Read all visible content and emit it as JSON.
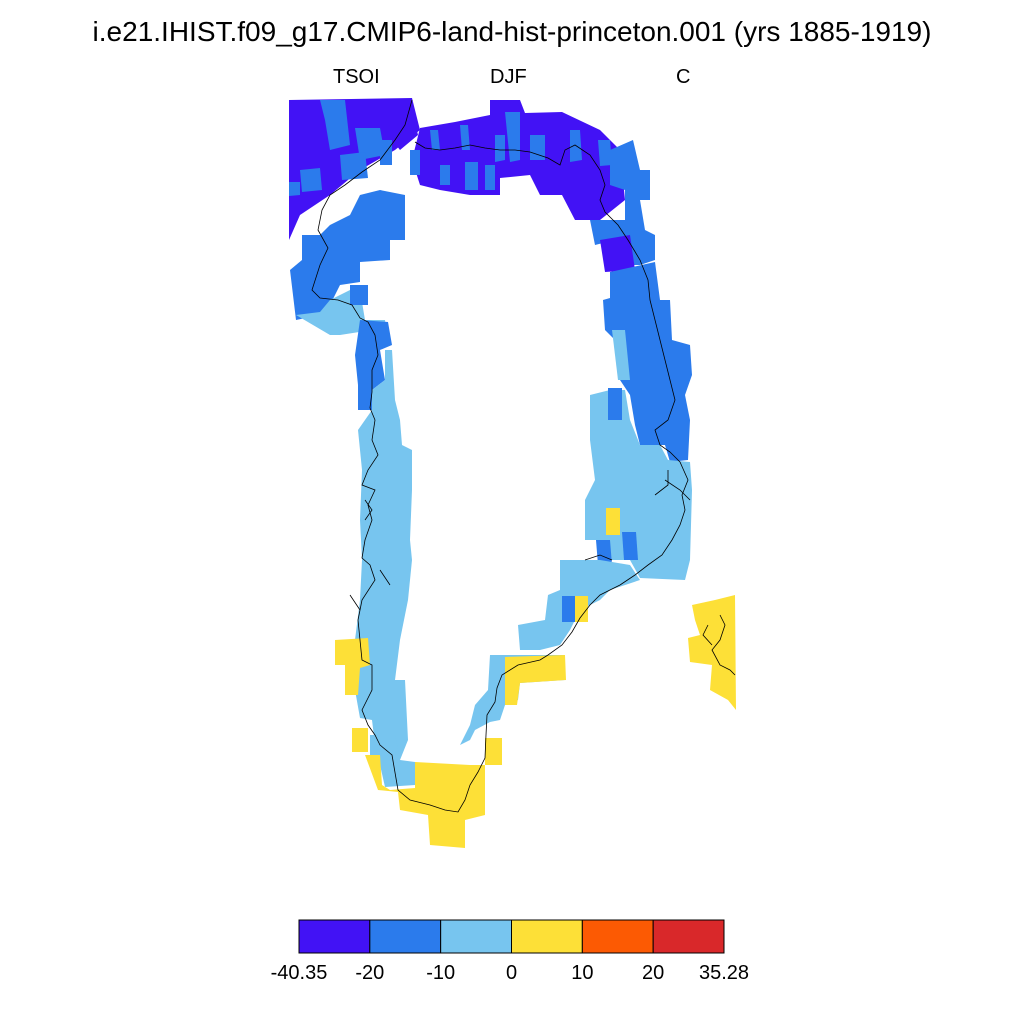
{
  "title": "i.e21.IHIST.f09_g17.CMIP6-land-hist-princeton.001 (yrs 1885-1919)",
  "left_subtitle": "TSOI",
  "center_subtitle": "DJF",
  "right_subtitle": "C",
  "colors": {
    "c1": "#4212f5",
    "c2": "#2b7bec",
    "c3": "#77c5ef",
    "c4": "#fde037",
    "c5": "#fc5a03",
    "c6": "#d9282a"
  },
  "colorbar": {
    "colors": [
      "#4212f5",
      "#2b7bec",
      "#77c5ef",
      "#fde037",
      "#fc5a03",
      "#d9282a"
    ],
    "labels": [
      "-40.35",
      "-20",
      "-10",
      "0",
      "10",
      "20",
      "35.28"
    ]
  }
}
